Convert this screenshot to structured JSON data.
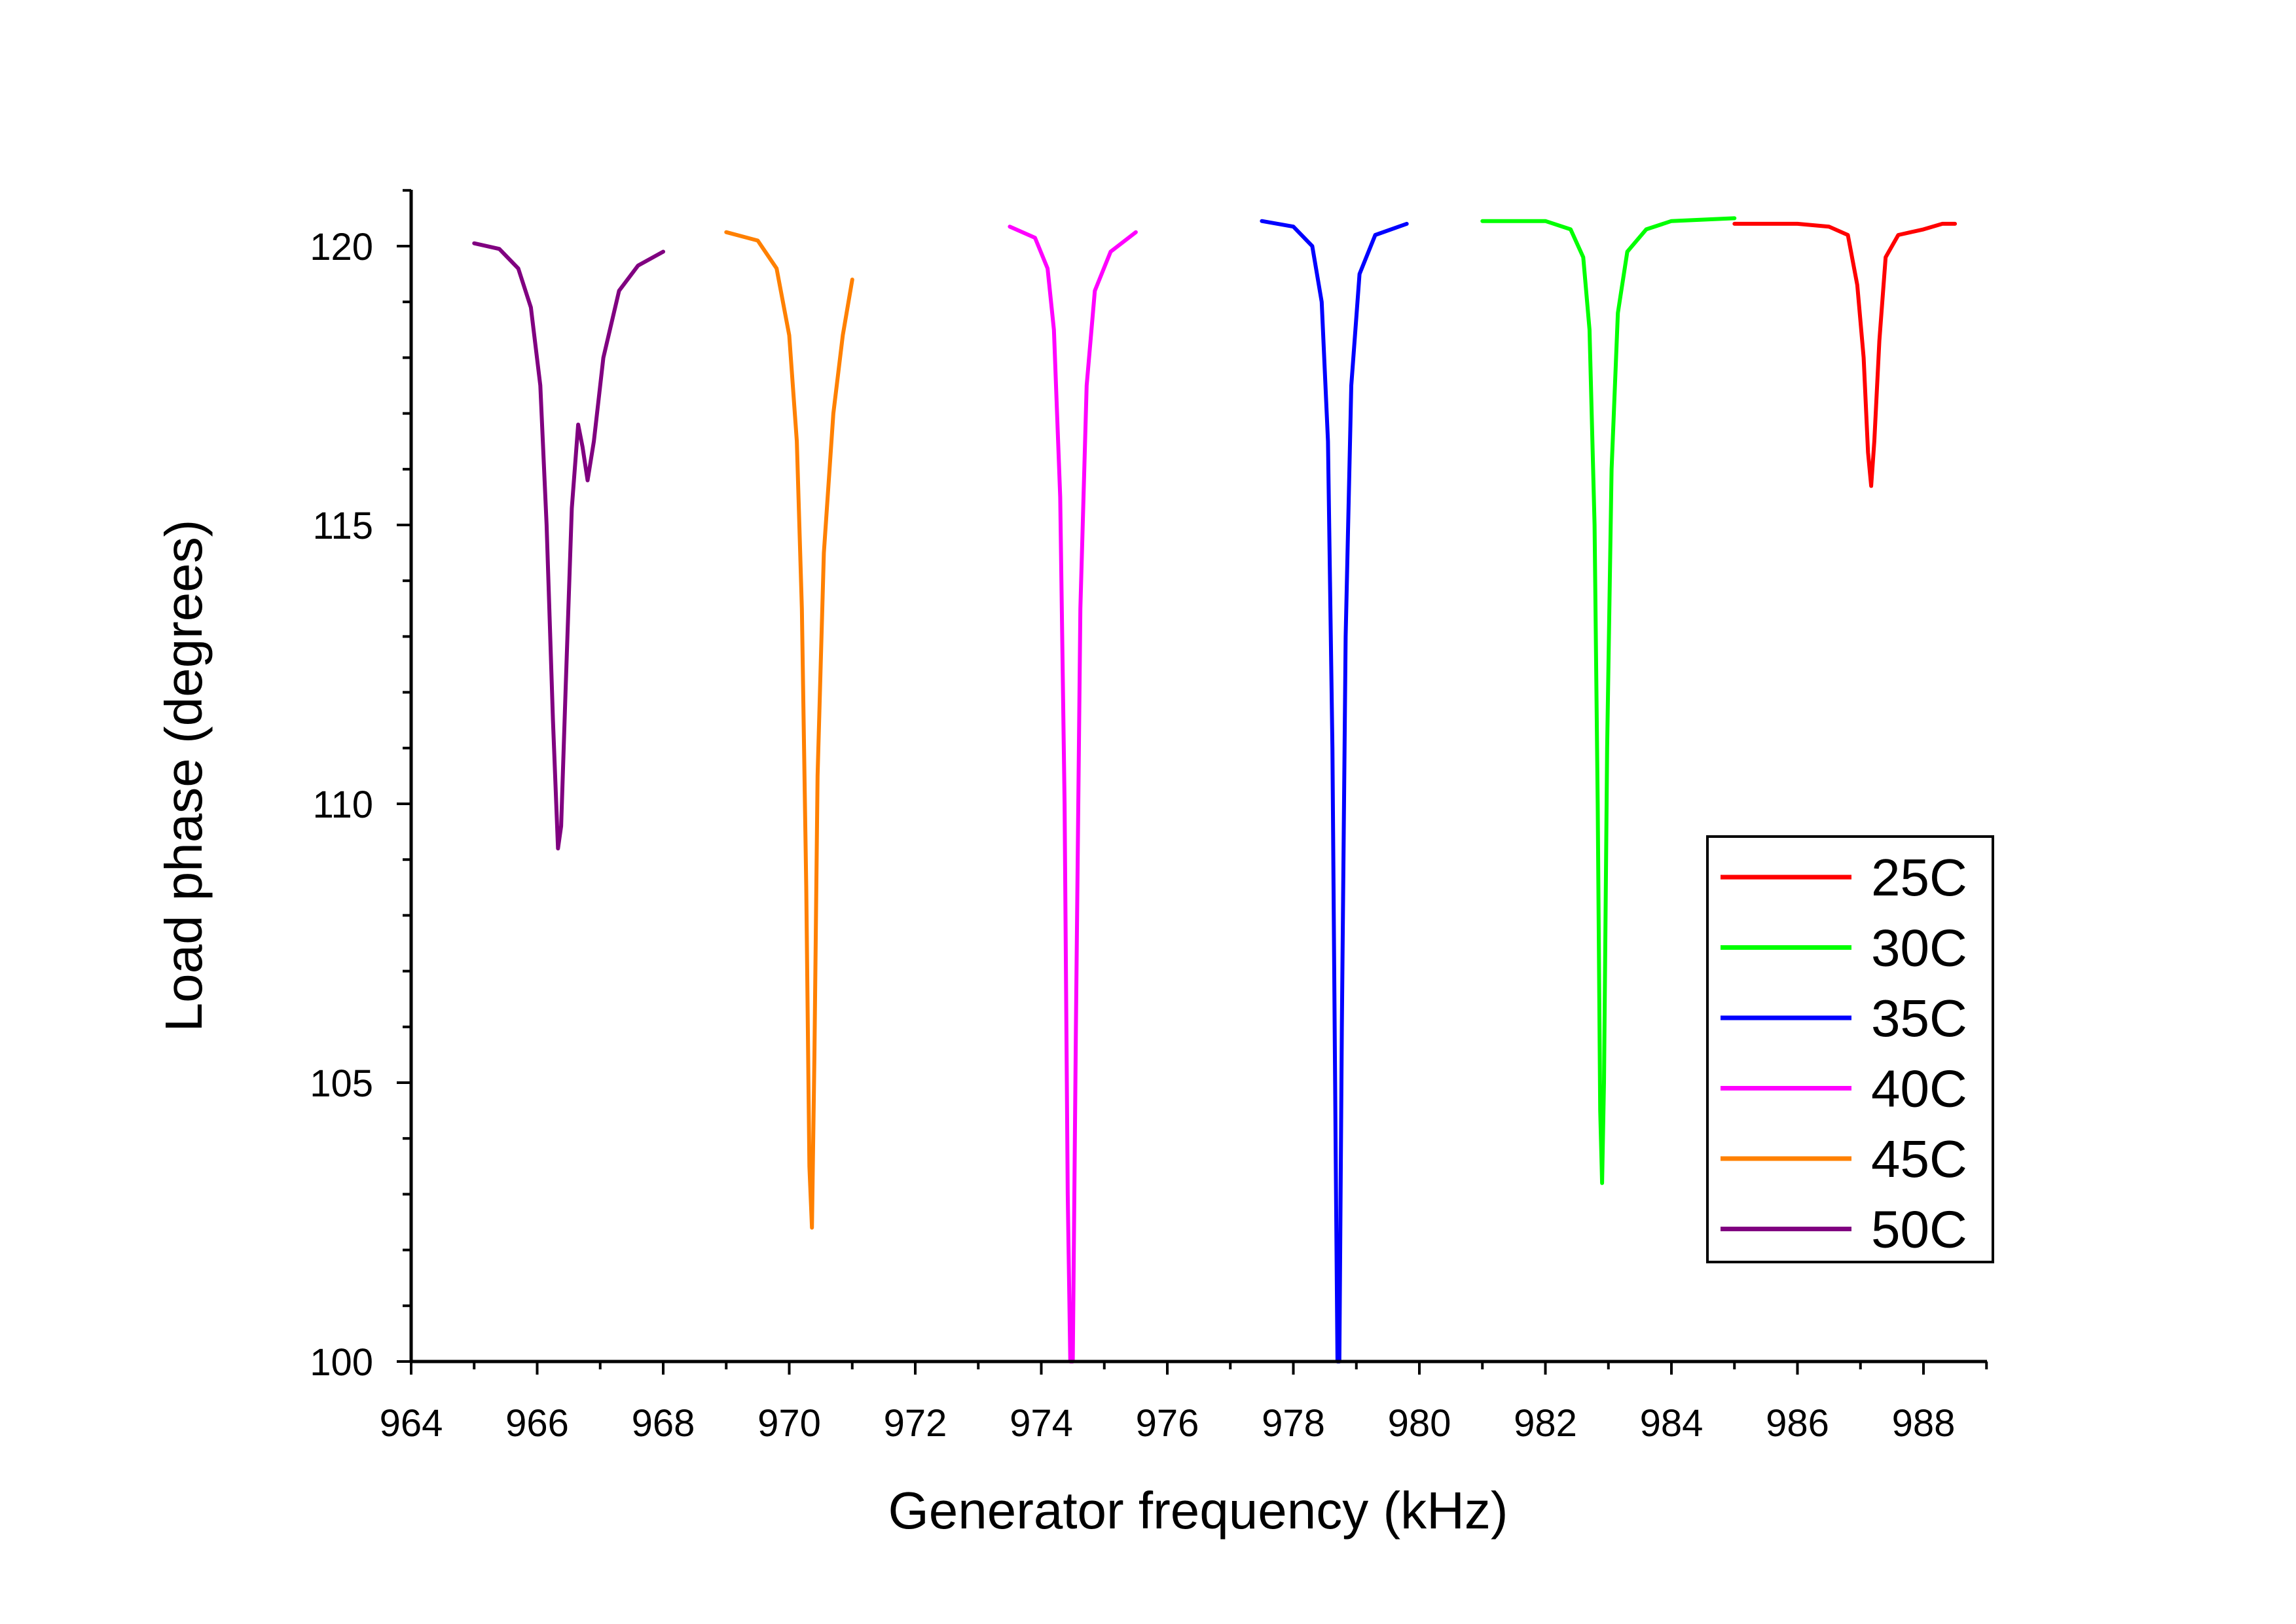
{
  "chart_data": {
    "type": "line",
    "title": "",
    "xlabel": "Generator frequency (kHz)",
    "ylabel": "Load phase (degrees)",
    "xlim": [
      964,
      989
    ],
    "ylim": [
      100,
      121
    ],
    "x_ticks": [
      "964",
      "966",
      "968",
      "970",
      "972",
      "974",
      "976",
      "978",
      "980",
      "982",
      "984",
      "986",
      "988"
    ],
    "y_ticks": [
      "100",
      "105",
      "110",
      "115",
      "120"
    ],
    "legend_position": "lower-right",
    "grid": false,
    "series": [
      {
        "name": "25C",
        "color": "#ff0000",
        "x": [
          985.0,
          986.0,
          986.5,
          986.8,
          986.95,
          987.05,
          987.12,
          987.17,
          987.22,
          987.3,
          987.4,
          987.6,
          987.8,
          988.0,
          988.3,
          988.5
        ],
        "y": [
          120.4,
          120.4,
          120.35,
          120.2,
          119.3,
          118.0,
          116.3,
          115.7,
          116.5,
          118.3,
          119.8,
          120.2,
          120.25,
          120.3,
          120.4,
          120.4
        ]
      },
      {
        "name": "30C",
        "color": "#00ff00",
        "x": [
          981.0,
          982.0,
          982.4,
          982.6,
          982.7,
          982.78,
          982.83,
          982.87,
          982.9,
          982.93,
          982.98,
          983.05,
          983.15,
          983.3,
          983.6,
          984.0,
          985.0
        ],
        "y": [
          120.45,
          120.45,
          120.3,
          119.8,
          118.5,
          115.0,
          110.0,
          104.5,
          103.2,
          105.0,
          111.0,
          116.0,
          118.8,
          119.9,
          120.3,
          120.45,
          120.5
        ]
      },
      {
        "name": "35C",
        "color": "#0000ff",
        "x": [
          977.5,
          978.0,
          978.3,
          978.45,
          978.55,
          978.62,
          978.67,
          978.7,
          978.73,
          978.77,
          978.83,
          978.92,
          979.05,
          979.3,
          979.8
        ],
        "y": [
          120.45,
          120.35,
          120.0,
          119.0,
          116.5,
          111.0,
          104.0,
          100.0,
          100.0,
          106.0,
          113.0,
          117.5,
          119.5,
          120.2,
          120.4
        ]
      },
      {
        "name": "40C",
        "color": "#ff00ff",
        "x": [
          973.5,
          973.9,
          974.1,
          974.2,
          974.3,
          974.37,
          974.42,
          974.46,
          974.5,
          974.55,
          974.62,
          974.72,
          974.85,
          975.1,
          975.5
        ],
        "y": [
          120.35,
          120.15,
          119.6,
          118.5,
          115.5,
          110.0,
          103.0,
          100.0,
          100.0,
          106.0,
          113.5,
          117.5,
          119.2,
          119.9,
          120.25
        ]
      },
      {
        "name": "45C",
        "color": "#ff8000",
        "x": [
          969.0,
          969.5,
          969.8,
          970.0,
          970.12,
          970.2,
          970.27,
          970.32,
          970.36,
          970.4,
          970.45,
          970.55,
          970.7,
          970.85,
          971.0
        ],
        "y": [
          120.25,
          120.1,
          119.6,
          118.4,
          116.5,
          113.5,
          108.5,
          103.5,
          102.4,
          105.5,
          110.5,
          114.5,
          117.0,
          118.4,
          119.4
        ]
      },
      {
        "name": "50C",
        "color": "#800080",
        "x": [
          965.0,
          965.4,
          965.7,
          965.9,
          966.05,
          966.15,
          966.25,
          966.33,
          966.38,
          966.45,
          966.55,
          966.65,
          966.72,
          966.8,
          966.9,
          967.05,
          967.3,
          967.6,
          968.0
        ],
        "y": [
          120.05,
          119.95,
          119.6,
          118.9,
          117.5,
          115.0,
          111.5,
          109.2,
          109.6,
          112.0,
          115.3,
          116.8,
          116.4,
          115.8,
          116.5,
          118.0,
          119.2,
          119.65,
          119.9
        ]
      }
    ]
  }
}
